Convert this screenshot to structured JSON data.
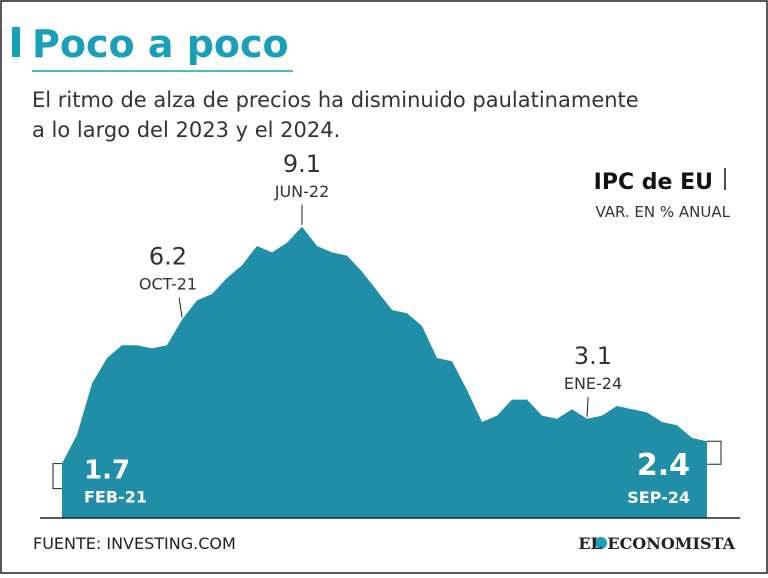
{
  "chart_data": {
    "type": "area",
    "title": "Poco a poco",
    "subtitle": [
      "El ritmo de alza de precios ha disminuido paulatinamente",
      "a lo largo del 2023 y el 2024."
    ],
    "series_label": "IPC de EU",
    "unit_label": "VAR. EN % ANUAL",
    "source": "FUENTE: INVESTING.COM",
    "brand": "EL ECONOMISTA",
    "color": "#1f8ea6",
    "categories": [
      "FEB-21",
      null,
      null,
      null,
      null,
      null,
      null,
      null,
      "OCT-21",
      null,
      null,
      null,
      null,
      null,
      null,
      null,
      "JUN-22",
      null,
      null,
      null,
      null,
      null,
      null,
      null,
      null,
      null,
      null,
      null,
      null,
      null,
      null,
      null,
      null,
      null,
      null,
      "ENE-24",
      null,
      null,
      null,
      null,
      null,
      null,
      null,
      "SEP-24"
    ],
    "values": [
      1.7,
      2.6,
      4.2,
      5.0,
      5.4,
      5.4,
      5.3,
      5.4,
      6.2,
      6.8,
      7.0,
      7.5,
      7.9,
      8.5,
      8.3,
      8.6,
      9.1,
      8.5,
      8.3,
      8.2,
      7.7,
      7.1,
      6.5,
      6.4,
      6.0,
      5.0,
      4.9,
      4.0,
      3.0,
      3.2,
      3.7,
      3.7,
      3.2,
      3.1,
      3.4,
      3.1,
      3.2,
      3.5,
      3.4,
      3.3,
      3.0,
      2.9,
      2.5,
      2.4
    ]
  }
}
